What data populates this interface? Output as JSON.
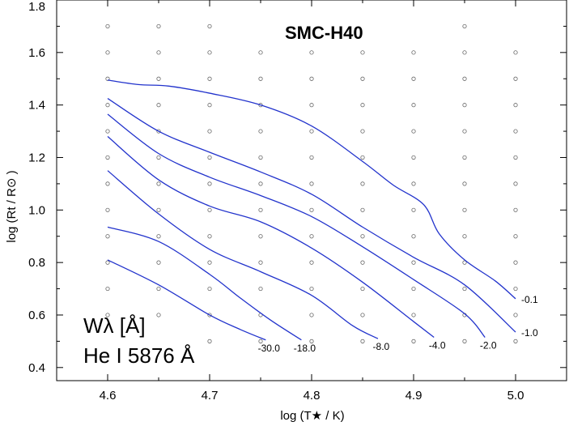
{
  "chart_data": {
    "type": "line",
    "title": "SMC-H40",
    "xlabel": "log (T★ / K)",
    "ylabel": "log (Rt / R⊙ )",
    "xlim": [
      4.55,
      5.05
    ],
    "ylim": [
      0.35,
      1.8
    ],
    "x_ticks": [
      "4.6",
      "4.7",
      "4.8",
      "4.9",
      "5.0"
    ],
    "y_ticks": [
      "0.4",
      "0.6",
      "0.8",
      "1.0",
      "1.2",
      "1.4",
      "1.6",
      "1.8"
    ],
    "grid": false,
    "annotation": {
      "line1": "Wλ [Å]",
      "line2": "He I 5876 Å"
    },
    "model_grid": {
      "columns": [
        {
          "x": 4.6,
          "y": [
            0.6,
            0.7,
            0.8,
            0.9,
            1.0,
            1.1,
            1.2,
            1.3,
            1.4,
            1.5,
            1.6,
            1.7
          ]
        },
        {
          "x": 4.65,
          "y": [
            0.6,
            0.7,
            0.8,
            0.9,
            1.0,
            1.1,
            1.2,
            1.3,
            1.4,
            1.5,
            1.6,
            1.7
          ]
        },
        {
          "x": 4.7,
          "y": [
            0.5,
            0.6,
            0.7,
            0.8,
            0.9,
            1.0,
            1.1,
            1.2,
            1.3,
            1.4,
            1.5,
            1.6,
            1.7
          ]
        },
        {
          "x": 4.75,
          "y": [
            0.5,
            0.6,
            0.7,
            0.8,
            0.9,
            1.0,
            1.1,
            1.2,
            1.3,
            1.4,
            1.5,
            1.6
          ]
        },
        {
          "x": 4.8,
          "y": [
            0.5,
            0.6,
            0.7,
            0.8,
            0.9,
            1.0,
            1.1,
            1.2,
            1.3,
            1.4,
            1.5,
            1.6
          ]
        },
        {
          "x": 4.85,
          "y": [
            0.5,
            0.6,
            0.7,
            0.8,
            0.9,
            1.0,
            1.1,
            1.2,
            1.3,
            1.4,
            1.5,
            1.6
          ]
        },
        {
          "x": 4.9,
          "y": [
            0.5,
            0.6,
            0.7,
            0.8,
            0.9,
            1.0,
            1.1,
            1.2,
            1.3,
            1.4,
            1.5,
            1.6
          ]
        },
        {
          "x": 4.95,
          "y": [
            0.5,
            0.6,
            0.7,
            0.8,
            0.9,
            1.0,
            1.1,
            1.2,
            1.3,
            1.4,
            1.5,
            1.6,
            1.7
          ]
        },
        {
          "x": 5.0,
          "y": [
            0.5,
            0.6,
            0.7,
            0.8,
            0.9,
            1.0,
            1.1,
            1.2,
            1.3,
            1.4,
            1.5,
            1.6
          ]
        }
      ]
    },
    "series": [
      {
        "label": "-0.1",
        "points": [
          [
            4.6,
            1.495
          ],
          [
            4.63,
            1.478
          ],
          [
            4.66,
            1.472
          ],
          [
            4.7,
            1.445
          ],
          [
            4.75,
            1.4
          ],
          [
            4.8,
            1.32
          ],
          [
            4.85,
            1.185
          ],
          [
            4.88,
            1.095
          ],
          [
            4.91,
            1.02
          ],
          [
            4.925,
            0.91
          ],
          [
            4.95,
            0.81
          ],
          [
            4.98,
            0.73
          ],
          [
            5.0,
            0.662
          ]
        ]
      },
      {
        "label": "-1.0",
        "points": [
          [
            4.6,
            1.425
          ],
          [
            4.65,
            1.3
          ],
          [
            4.7,
            1.22
          ],
          [
            4.75,
            1.145
          ],
          [
            4.8,
            1.06
          ],
          [
            4.85,
            0.935
          ],
          [
            4.9,
            0.82
          ],
          [
            4.95,
            0.715
          ],
          [
            5.0,
            0.535
          ]
        ]
      },
      {
        "label": "-2.0",
        "points": [
          [
            4.6,
            1.365
          ],
          [
            4.65,
            1.215
          ],
          [
            4.7,
            1.125
          ],
          [
            4.75,
            1.055
          ],
          [
            4.8,
            0.975
          ],
          [
            4.85,
            0.86
          ],
          [
            4.9,
            0.735
          ],
          [
            4.95,
            0.605
          ],
          [
            4.97,
            0.515
          ]
        ]
      },
      {
        "label": "-4.0",
        "points": [
          [
            4.6,
            1.28
          ],
          [
            4.65,
            1.115
          ],
          [
            4.7,
            1.015
          ],
          [
            4.75,
            0.955
          ],
          [
            4.8,
            0.855
          ],
          [
            4.85,
            0.725
          ],
          [
            4.9,
            0.575
          ],
          [
            4.92,
            0.515
          ]
        ]
      },
      {
        "label": "-8.0",
        "points": [
          [
            4.6,
            1.15
          ],
          [
            4.65,
            0.985
          ],
          [
            4.7,
            0.85
          ],
          [
            4.75,
            0.765
          ],
          [
            4.8,
            0.675
          ],
          [
            4.84,
            0.56
          ],
          [
            4.865,
            0.51
          ]
        ]
      },
      {
        "label": "-18.0",
        "points": [
          [
            4.6,
            0.935
          ],
          [
            4.65,
            0.88
          ],
          [
            4.7,
            0.755
          ],
          [
            4.73,
            0.665
          ],
          [
            4.76,
            0.58
          ],
          [
            4.79,
            0.505
          ]
        ]
      },
      {
        "label": "-30.0",
        "points": [
          [
            4.6,
            0.81
          ],
          [
            4.65,
            0.715
          ],
          [
            4.7,
            0.6
          ],
          [
            4.73,
            0.545
          ],
          [
            4.755,
            0.505
          ]
        ]
      }
    ]
  }
}
